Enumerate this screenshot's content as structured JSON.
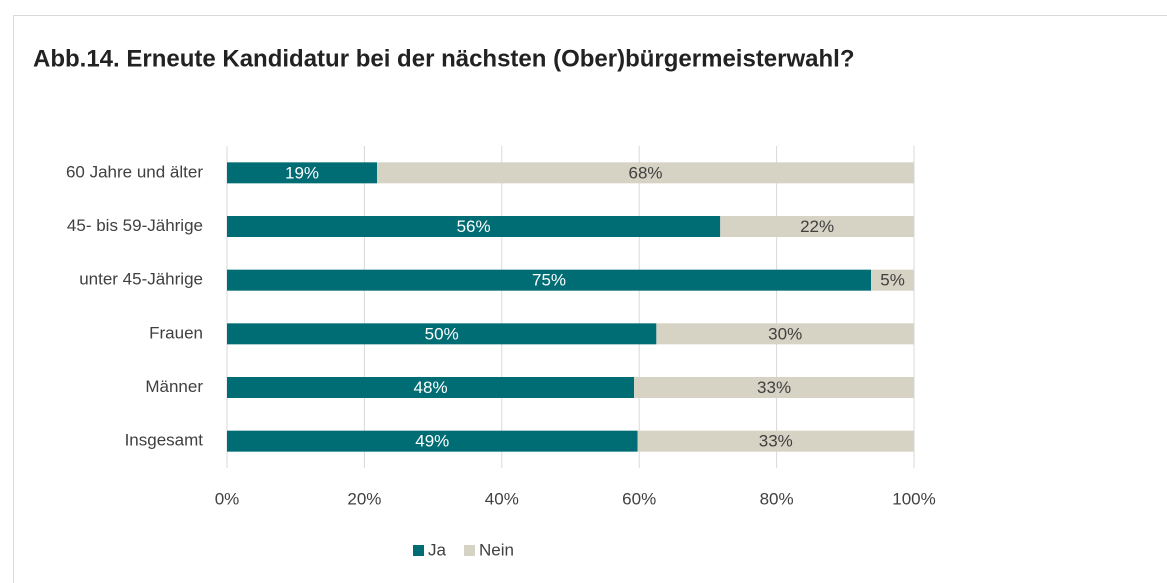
{
  "chart_data": {
    "type": "bar",
    "orientation": "horizontal",
    "stack": "percent",
    "title": "Abb.14. Erneute Kandidatur bei der nächsten (Ober)bürgermeisterwahl?",
    "categories": [
      "60 Jahre und älter",
      "45- bis 59-Jährige",
      "unter 45-Jährige",
      "Frauen",
      "Männer",
      "Insgesamt"
    ],
    "series": [
      {
        "name": "Ja",
        "color": "#006d75",
        "values": [
          19,
          56,
          75,
          50,
          48,
          49
        ],
        "value_labels": [
          "19%",
          "56%",
          "75%",
          "50%",
          "48%",
          "49%"
        ]
      },
      {
        "name": "Nein",
        "color": "#d6d2c4",
        "values": [
          68,
          22,
          5,
          30,
          33,
          33
        ],
        "value_labels": [
          "68%",
          "22%",
          "5%",
          "30%",
          "33%",
          "33%"
        ]
      }
    ],
    "xlim": [
      0,
      100
    ],
    "xticks": [
      {
        "value": 0,
        "label": "0%"
      },
      {
        "value": 20,
        "label": "20%"
      },
      {
        "value": 40,
        "label": "40%"
      },
      {
        "value": 60,
        "label": "60%"
      },
      {
        "value": 80,
        "label": "80%"
      },
      {
        "value": 100,
        "label": "100%"
      }
    ],
    "grid": true,
    "legend": "bottom"
  }
}
